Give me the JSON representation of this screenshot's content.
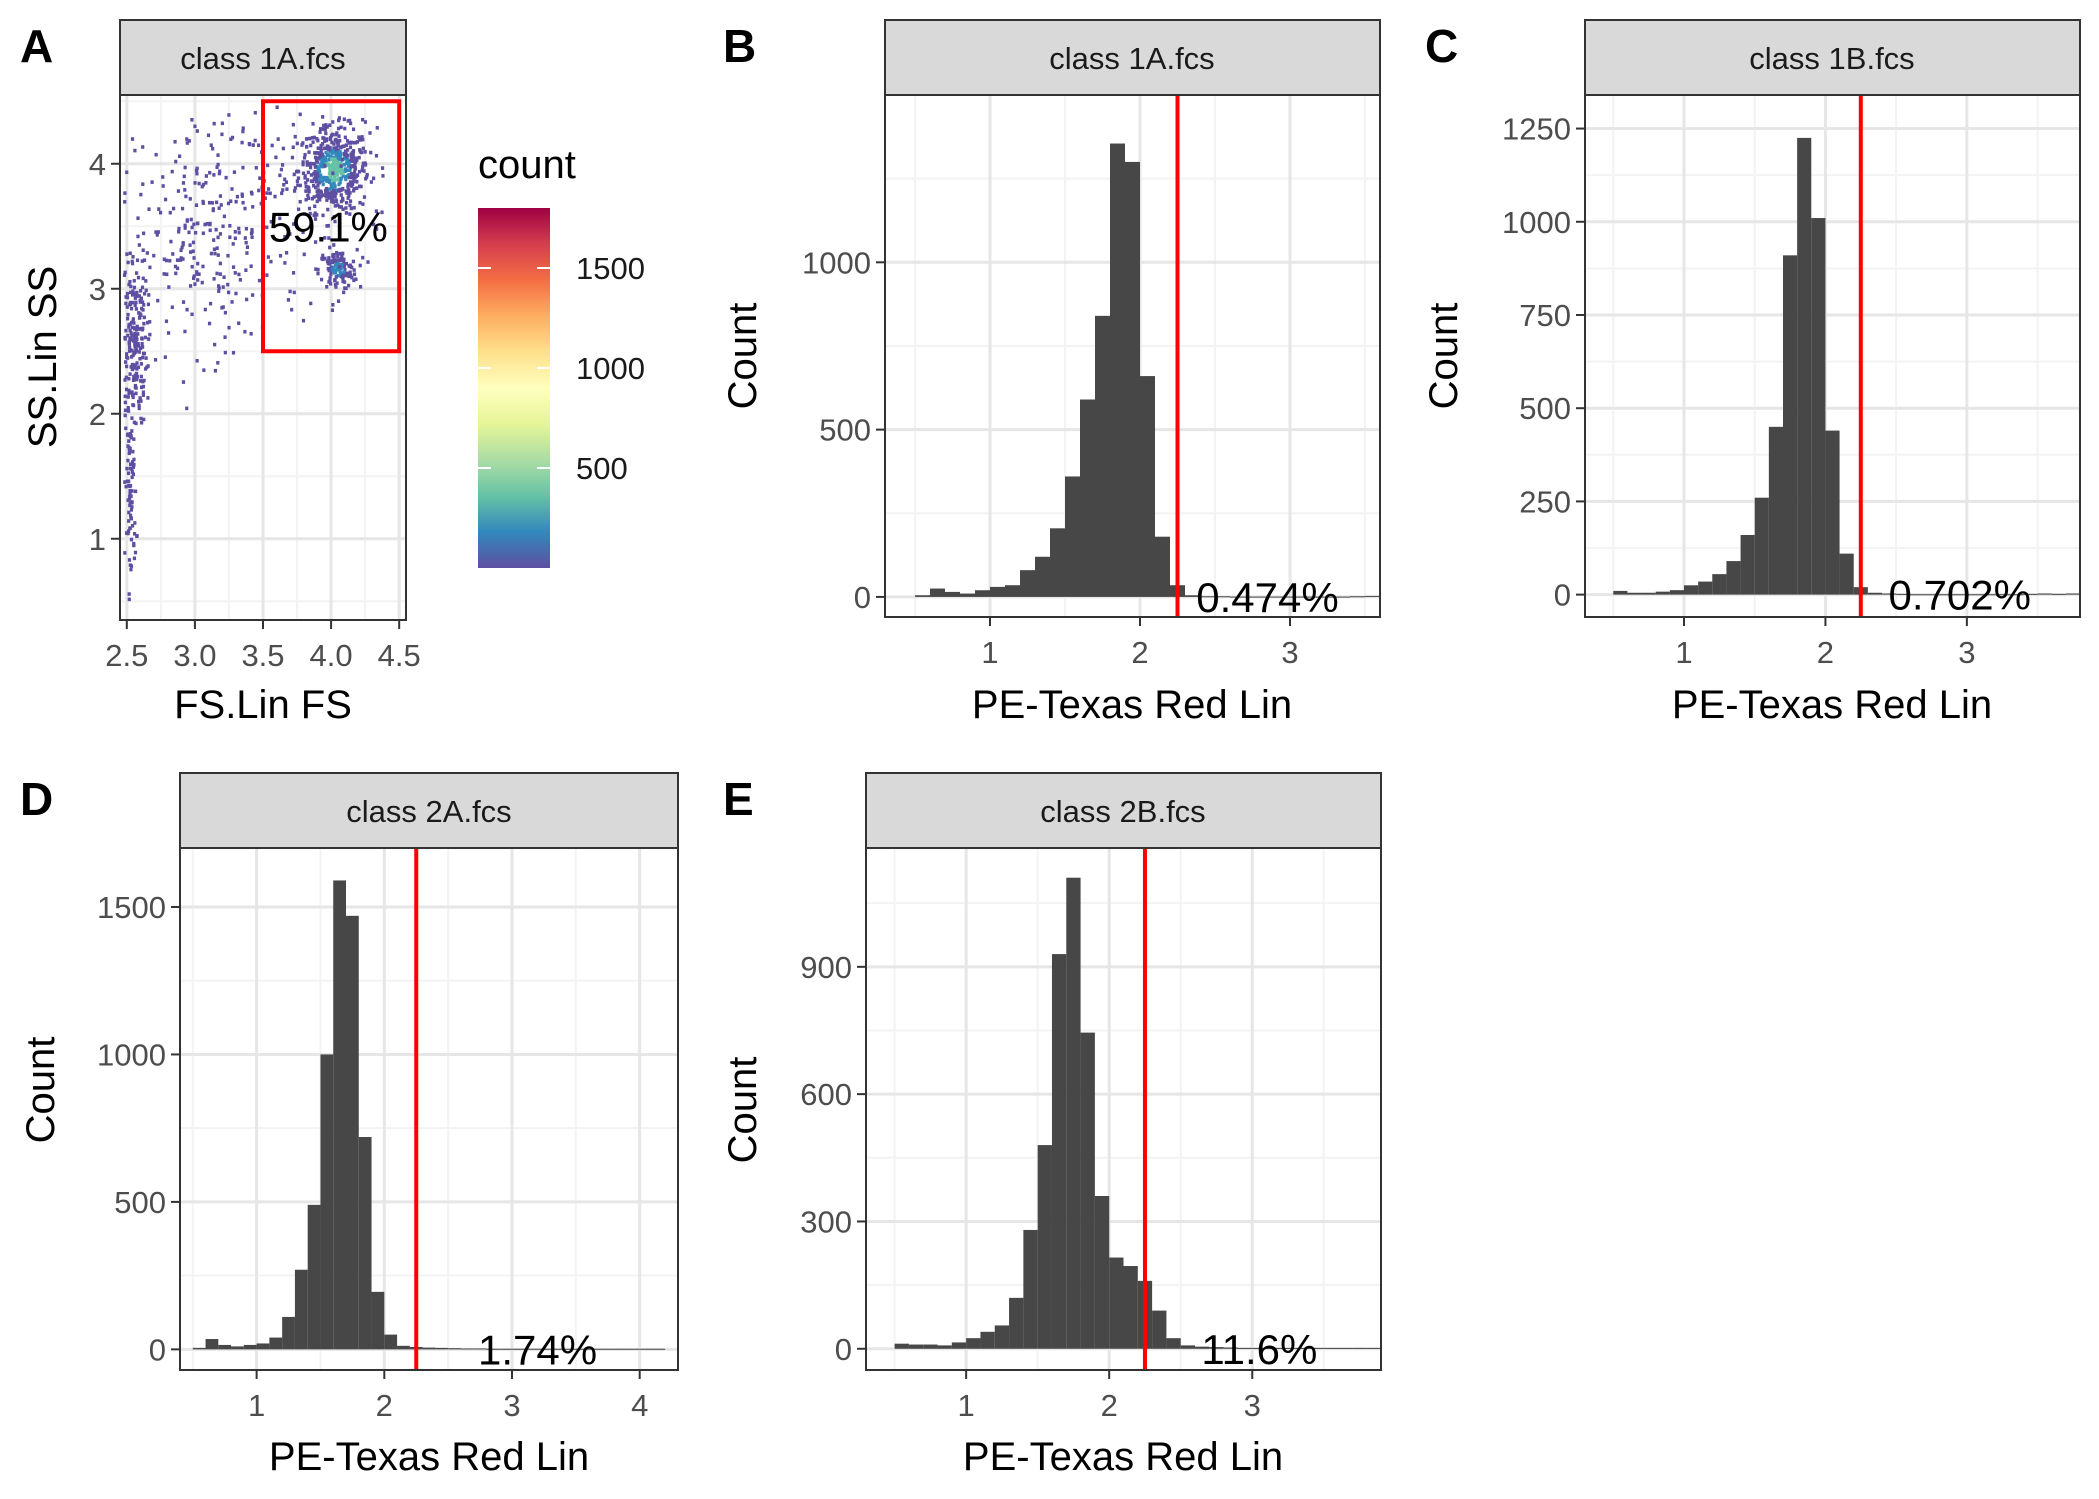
{
  "chart_data": [
    {
      "panel": "A",
      "type": "heatmap",
      "strip": "class 1A.fcs",
      "xlabel": "FS.Lin FS",
      "ylabel": "SS.Lin SS",
      "xticks": [
        "2.5",
        "3.0",
        "3.5",
        "4.0",
        "4.5"
      ],
      "xtick_values": [
        2.5,
        3.0,
        3.5,
        4.0,
        4.5
      ],
      "yticks": [
        "1",
        "2",
        "3",
        "4"
      ],
      "ytick_values": [
        1,
        2,
        3,
        4
      ],
      "xlim": [
        2.45,
        4.55
      ],
      "ylim": [
        0.35,
        4.55
      ],
      "gate": {
        "x": [
          3.5,
          4.5
        ],
        "y": [
          2.5,
          4.5
        ],
        "color": "#ff0000"
      },
      "gate_label": "59.1%",
      "gate_label_pos": [
        3.98,
        3.5
      ],
      "legend": {
        "title": "count",
        "ticks": [
          "1500",
          "1000",
          "500"
        ],
        "tick_values": [
          1500,
          1000,
          500
        ],
        "range": [
          0,
          1800
        ],
        "colors": [
          "#5e4fa2",
          "#3288bd",
          "#66c2a5",
          "#abdda4",
          "#e6f598",
          "#ffffbf",
          "#fee08b",
          "#fdae61",
          "#f46d43",
          "#d53e4f",
          "#9e0142"
        ]
      },
      "clusters": [
        {
          "cx": 4.02,
          "cy": 3.95,
          "sx": 0.13,
          "sy": 0.17,
          "n": 520,
          "density": "high"
        },
        {
          "cx": 4.05,
          "cy": 3.15,
          "sx": 0.07,
          "sy": 0.08,
          "n": 120,
          "density": "medium"
        },
        {
          "cx": 2.55,
          "cy": 2.6,
          "sx": 0.05,
          "sy": 0.35,
          "n": 220,
          "density": "low"
        },
        {
          "cx": 2.53,
          "cy": 1.4,
          "sx": 0.02,
          "sy": 0.4,
          "n": 90,
          "density": "low"
        },
        {
          "cx": 3.1,
          "cy": 3.3,
          "sx": 0.35,
          "sy": 0.4,
          "n": 240,
          "density": "low"
        },
        {
          "cx": 3.5,
          "cy": 3.9,
          "sx": 0.5,
          "sy": 0.4,
          "n": 120,
          "density": "low"
        }
      ]
    },
    {
      "panel": "B",
      "type": "bar",
      "strip": "class 1A.fcs",
      "xlabel": "PE-Texas Red Lin",
      "ylabel": "Count",
      "xticks": [
        "1",
        "2",
        "3"
      ],
      "xtick_values": [
        1,
        2,
        3
      ],
      "yticks": [
        "0",
        "500",
        "1000"
      ],
      "ytick_values": [
        0,
        500,
        1000
      ],
      "xlim": [
        0.3,
        3.6
      ],
      "ylim": [
        -60,
        1500
      ],
      "bin_start": 0.5,
      "bin_width": 0.1,
      "values": [
        5,
        25,
        15,
        10,
        20,
        30,
        35,
        80,
        120,
        205,
        360,
        590,
        840,
        1355,
        1300,
        660,
        180,
        35,
        5,
        2,
        2,
        1,
        1,
        1,
        1,
        1,
        1,
        1,
        1,
        2,
        3
      ],
      "cutoff": 2.25,
      "cutoff_color": "#ff0000",
      "gate_label": "0.474%",
      "gate_label_pos": [
        2.85,
        0
      ]
    },
    {
      "panel": "C",
      "type": "bar",
      "strip": "class 1B.fcs",
      "xlabel": "PE-Texas Red Lin",
      "ylabel": "Count",
      "xticks": [
        "1",
        "2",
        "3"
      ],
      "xtick_values": [
        1,
        2,
        3
      ],
      "yticks": [
        "0",
        "250",
        "500",
        "750",
        "1000",
        "1250"
      ],
      "ytick_values": [
        0,
        250,
        500,
        750,
        1000,
        1250
      ],
      "xlim": [
        0.3,
        3.8
      ],
      "ylim": [
        -60,
        1340
      ],
      "bin_start": 0.5,
      "bin_width": 0.1,
      "values": [
        10,
        5,
        5,
        8,
        12,
        25,
        35,
        55,
        90,
        160,
        260,
        450,
        910,
        1225,
        1010,
        440,
        110,
        20,
        5,
        3,
        2,
        1,
        1,
        1,
        1,
        1,
        1,
        1,
        1,
        2,
        3,
        2,
        3
      ],
      "cutoff": 2.25,
      "cutoff_color": "#ff0000",
      "gate_label": "0.702%",
      "gate_label_pos": [
        2.95,
        0
      ]
    },
    {
      "panel": "D",
      "type": "bar",
      "strip": "class 2A.fcs",
      "xlabel": "PE-Texas Red Lin",
      "ylabel": "Count",
      "xticks": [
        "1",
        "2",
        "3",
        "4"
      ],
      "xtick_values": [
        1,
        2,
        3,
        4
      ],
      "yticks": [
        "0",
        "500",
        "1000",
        "1500"
      ],
      "ytick_values": [
        0,
        500,
        1000,
        1500
      ],
      "xlim": [
        0.4,
        4.3
      ],
      "ylim": [
        -70,
        1700
      ],
      "bin_start": 0.5,
      "bin_width": 0.1,
      "values": [
        5,
        35,
        15,
        10,
        15,
        20,
        40,
        110,
        270,
        490,
        1000,
        1590,
        1470,
        720,
        195,
        50,
        12,
        8,
        6,
        5,
        4,
        3,
        3,
        2,
        2,
        2,
        2,
        2,
        2,
        2,
        2,
        2,
        2,
        2,
        2,
        2,
        2
      ],
      "cutoff": 2.25,
      "cutoff_color": "#ff0000",
      "gate_label": "1.74%",
      "gate_label_pos": [
        3.2,
        0
      ]
    },
    {
      "panel": "E",
      "type": "bar",
      "strip": "class 2B.fcs",
      "xlabel": "PE-Texas Red Lin",
      "ylabel": "Count",
      "xticks": [
        "1",
        "2",
        "3"
      ],
      "xtick_values": [
        1,
        2,
        3
      ],
      "yticks": [
        "0",
        "300",
        "600",
        "900"
      ],
      "ytick_values": [
        0,
        300,
        600,
        900
      ],
      "xlim": [
        0.3,
        3.9
      ],
      "ylim": [
        -50,
        1180
      ],
      "bin_start": 0.5,
      "bin_width": 0.1,
      "values": [
        12,
        10,
        10,
        8,
        15,
        25,
        40,
        55,
        120,
        280,
        480,
        930,
        1110,
        745,
        360,
        215,
        195,
        160,
        90,
        25,
        8,
        5,
        4,
        3,
        2,
        2,
        2,
        2,
        2,
        2,
        2,
        2,
        2,
        2
      ],
      "cutoff": 2.25,
      "cutoff_color": "#ff0000",
      "gate_label": "11.6%",
      "gate_label_pos": [
        3.05,
        0
      ]
    }
  ]
}
